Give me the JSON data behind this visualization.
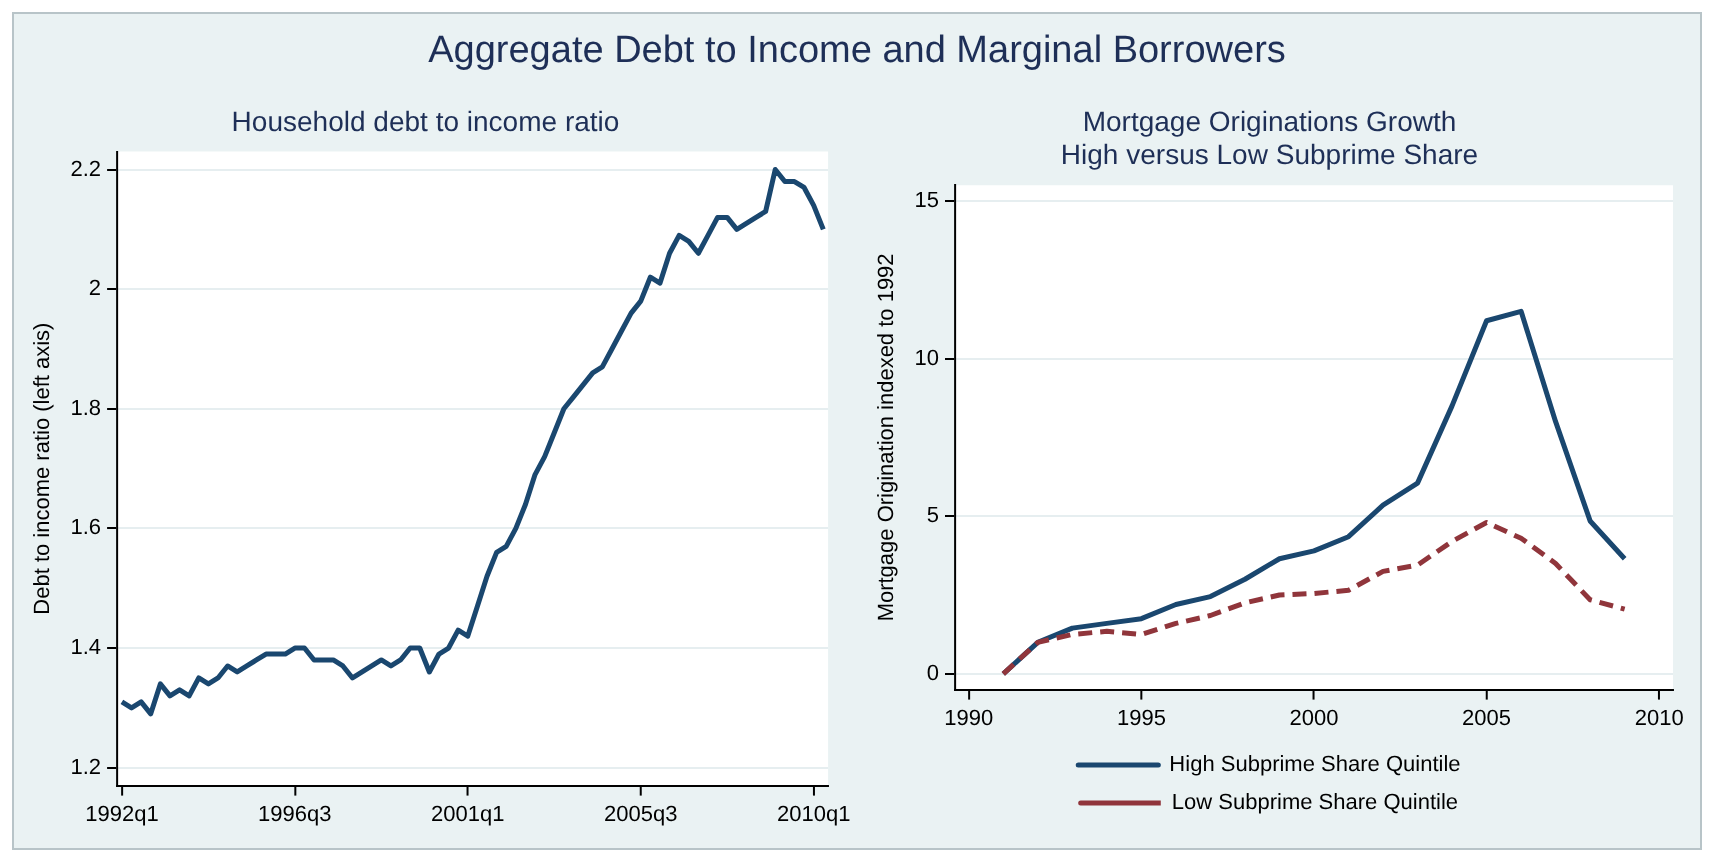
{
  "chart_data": [
    {
      "type": "other",
      "title": "Aggregate Debt to Income and Marginal Borrowers"
    },
    {
      "type": "line",
      "title": "Household debt to income ratio",
      "ylabel": "Debt to income ratio (left axis)",
      "categories": [
        "1992q1",
        null,
        null,
        null,
        null,
        null,
        null,
        null,
        null,
        null,
        null,
        null,
        null,
        null,
        null,
        null,
        null,
        null,
        "1996q3",
        null,
        null,
        null,
        null,
        null,
        null,
        null,
        null,
        null,
        null,
        null,
        null,
        null,
        null,
        null,
        null,
        null,
        "2001q1",
        null,
        null,
        null,
        null,
        null,
        null,
        null,
        null,
        null,
        null,
        null,
        null,
        null,
        null,
        null,
        null,
        null,
        "2005q3",
        null,
        null,
        null,
        null,
        null,
        null,
        null,
        null,
        null,
        null,
        null,
        null,
        null,
        null,
        null,
        null,
        null,
        "2010q1",
        null
      ],
      "series": [
        {
          "color": "#1a476f",
          "values": [
            1.31,
            1.3,
            1.31,
            1.29,
            1.34,
            1.32,
            1.33,
            1.32,
            1.35,
            1.34,
            1.35,
            1.37,
            1.36,
            1.37,
            1.38,
            1.39,
            1.39,
            1.39,
            1.4,
            1.4,
            1.38,
            1.38,
            1.38,
            1.37,
            1.35,
            1.36,
            1.37,
            1.38,
            1.37,
            1.38,
            1.4,
            1.4,
            1.36,
            1.39,
            1.4,
            1.43,
            1.42,
            1.47,
            1.52,
            1.56,
            1.57,
            1.6,
            1.64,
            1.69,
            1.72,
            1.76,
            1.8,
            1.82,
            1.84,
            1.86,
            1.87,
            1.9,
            1.93,
            1.96,
            1.98,
            2.02,
            2.01,
            2.06,
            2.09,
            2.08,
            2.06,
            2.09,
            2.12,
            2.12,
            2.1,
            2.11,
            2.12,
            2.13,
            2.2,
            2.18,
            2.18,
            2.17,
            2.14,
            2.1
          ]
        }
      ],
      "ylim": [
        1.17,
        2.23
      ],
      "yticks": [
        1.2,
        1.4,
        1.6,
        1.8,
        2,
        2.2
      ],
      "grid": "y",
      "legend": false,
      "marker": "none",
      "line_style": "solid"
    },
    {
      "type": "line",
      "title": "Mortgage Originations Growth\nHigh versus Low Subprime Share",
      "ylabel": "Mortgage Origination indexed to 1992",
      "x": [
        1991,
        1992,
        1993,
        1994,
        1995,
        1996,
        1997,
        1998,
        1999,
        2000,
        2001,
        2002,
        2003,
        2004,
        2005,
        2006,
        2007,
        2008,
        2009
      ],
      "series": [
        {
          "name": "High Subprime Share Quintile",
          "color": "#1a476f",
          "line_style": "solid",
          "values": [
            0,
            1.0,
            1.45,
            1.6,
            1.75,
            2.2,
            2.45,
            3.0,
            3.65,
            3.9,
            4.35,
            5.35,
            6.05,
            8.5,
            11.2,
            11.5,
            8.0,
            4.85,
            3.65
          ]
        },
        {
          "name": "Low Subprime Share Quintile",
          "color": "#90353b",
          "line_style": "dashed",
          "values": [
            0,
            1.0,
            1.25,
            1.35,
            1.25,
            1.6,
            1.85,
            2.25,
            2.5,
            2.55,
            2.65,
            3.25,
            3.45,
            4.2,
            4.8,
            4.3,
            3.5,
            2.35,
            2.05
          ]
        }
      ],
      "xlim": [
        1989.6,
        2010.4
      ],
      "xticks": [
        1990,
        1995,
        2000,
        2005,
        2010
      ],
      "ylim": [
        -0.5,
        15.5
      ],
      "yticks": [
        0,
        5,
        10,
        15
      ],
      "grid": "y",
      "legend": "bottom",
      "marker": "none"
    }
  ]
}
